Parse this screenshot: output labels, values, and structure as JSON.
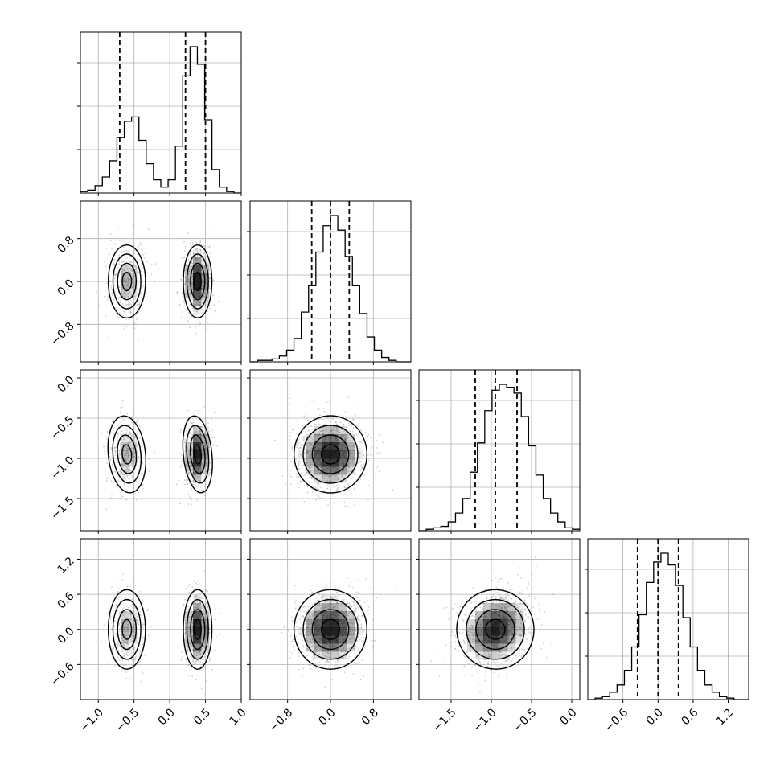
{
  "chart_data": {
    "type": "corner",
    "description_of_panels": "lower-triangular corner plot of 4 parameters; diagonal = 1D histograms with 16/50/84 percentile dashed lines; off-diagonal = 2D density (scatter points + shaded bins + contours)",
    "parameters": [
      {
        "id": "p0",
        "range": [
          -1.25,
          1.0
        ],
        "ticks": [
          -1.0,
          -0.5,
          0.0,
          0.5,
          1.0
        ],
        "tick_labels": [
          "−1.0",
          "−0.5",
          "0.0",
          "0.5",
          "1.0"
        ],
        "quantiles": [
          -0.7,
          0.22,
          0.5
        ],
        "histogram": [
          1,
          2,
          5,
          11,
          22,
          38,
          49,
          52,
          36,
          20,
          9,
          4,
          9,
          32,
          80,
          100,
          88,
          50,
          16,
          4,
          1,
          0
        ],
        "modes": [
          {
            "center": -0.6,
            "sx": 0.13,
            "sy_scale": 1.0
          },
          {
            "center": 0.39,
            "sx": 0.1,
            "sy_scale": 1.0
          }
        ]
      },
      {
        "id": "p1",
        "range": [
          -1.5,
          1.5
        ],
        "ticks": [
          -0.8,
          0.0,
          0.8
        ],
        "tick_labels": [
          "−0.8",
          "0.0",
          "0.8"
        ],
        "quantiles": [
          -0.35,
          0.0,
          0.35
        ],
        "center": 0.0,
        "sigma": 0.34,
        "histogram": [
          0,
          1,
          1,
          2,
          4,
          8,
          16,
          34,
          52,
          75,
          93,
          100,
          90,
          72,
          52,
          33,
          17,
          8,
          3,
          1,
          0,
          0
        ]
      },
      {
        "id": "p2",
        "range": [
          -1.9,
          0.1
        ],
        "ticks": [
          -1.5,
          -1.0,
          -0.5,
          0.0
        ],
        "tick_labels": [
          "−1.5",
          "−1.0",
          "−0.5",
          "0.0"
        ],
        "quantiles": [
          -1.2,
          -0.95,
          -0.68
        ],
        "center": -0.95,
        "sigma": 0.24,
        "histogram": [
          0,
          1,
          2,
          3,
          6,
          12,
          22,
          40,
          60,
          82,
          96,
          100,
          98,
          94,
          78,
          58,
          38,
          22,
          12,
          6,
          2,
          1
        ]
      },
      {
        "id": "p3",
        "range": [
          -1.2,
          1.55
        ],
        "ticks": [
          -0.6,
          0.0,
          0.6,
          1.2
        ],
        "tick_labels": [
          "−0.6",
          "0.0",
          "0.6",
          "1.2"
        ],
        "quantiles": [
          -0.35,
          0.0,
          0.35
        ],
        "center": 0.0,
        "sigma": 0.34,
        "histogram": [
          0,
          1,
          2,
          5,
          10,
          20,
          36,
          58,
          80,
          94,
          100,
          92,
          78,
          56,
          36,
          20,
          10,
          5,
          2,
          1,
          0,
          0
        ]
      }
    ],
    "grid": true,
    "colors": {
      "line": "#000000",
      "grid": "#b0b0b0",
      "points": "#9a9a9a",
      "density": "#000000"
    }
  }
}
